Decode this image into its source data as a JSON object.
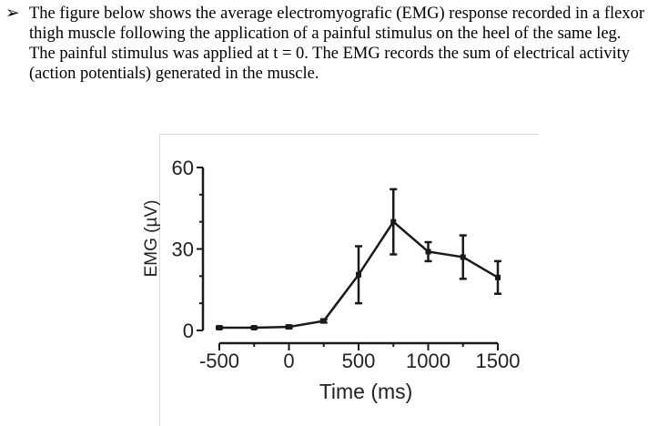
{
  "intro": {
    "bullet": "➢",
    "lines": [
      "The figure below shows the average electromyografic (EMG) response recorded in a flexor",
      "thigh muscle following the application of a painful stimulus on the heel of the same leg.",
      "The painful stimulus was applied at t = 0. The EMG records the sum of electrical activity",
      "(action potentials) generated in the muscle."
    ]
  },
  "chart_data": {
    "type": "line",
    "xlabel": "Time (ms)",
    "ylabel": "EMG (µV)",
    "xlim": [
      -500,
      1500
    ],
    "ylim": [
      0,
      60
    ],
    "x_ticks": [
      -500,
      0,
      500,
      1000,
      1500
    ],
    "x_tick_labels": [
      "-500",
      "0",
      "500",
      "1000",
      "1500"
    ],
    "y_ticks": [
      0,
      30,
      60
    ],
    "y_tick_labels": [
      "0",
      "30",
      "60"
    ],
    "grid": false,
    "legend": "none",
    "line_color": "#1a1a1a",
    "series": [
      {
        "x": [
          -500,
          -250,
          0,
          250,
          500,
          750,
          1000,
          1250,
          1500
        ],
        "y": [
          1,
          1,
          1.3,
          3.5,
          20.5,
          40,
          29,
          27,
          19.5
        ],
        "error": [
          0.4,
          0.3,
          0.5,
          0.6,
          10.5,
          12,
          3.5,
          8,
          6
        ]
      }
    ]
  }
}
